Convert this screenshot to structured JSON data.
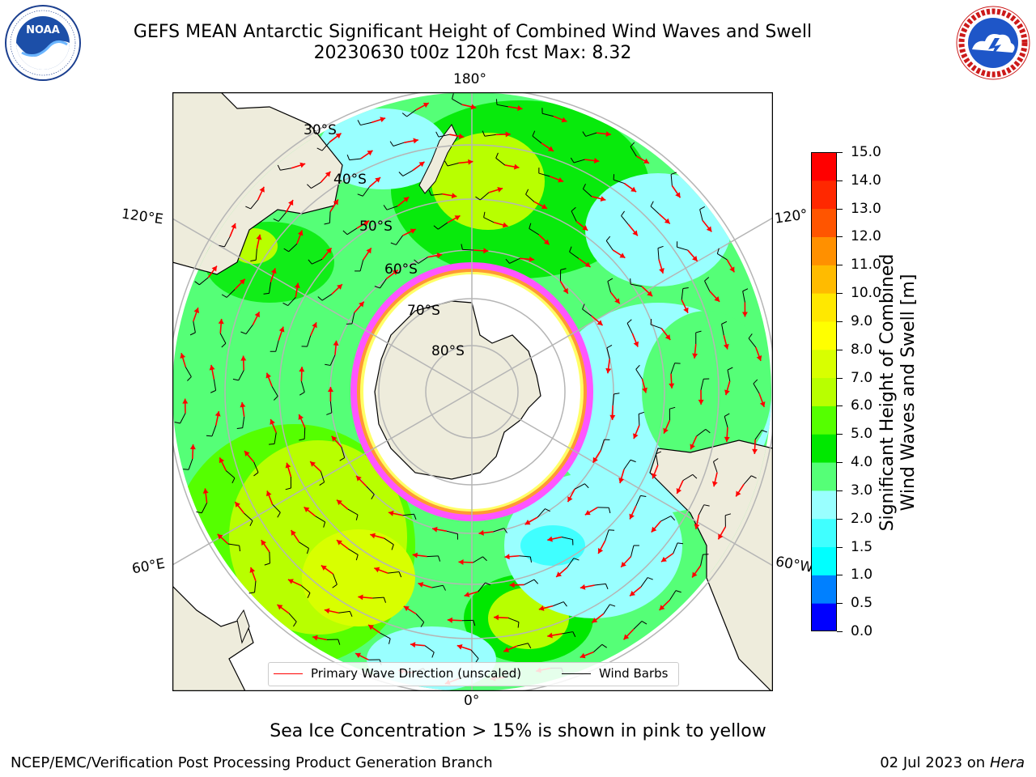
{
  "header": {
    "title_line1": "GEFS MEAN Antarctic Significant Height of Combined Wind Waves and Swell",
    "title_line2": "20230630 t00z 120h fcst   Max: 8.32"
  },
  "logos": {
    "noaa": {
      "text": "NOAA",
      "ring_text": "NATIONAL OCEANIC AND ATMOSPHERIC ADMINISTRATION · U.S. DEPARTMENT OF COMMERCE"
    },
    "nws": {
      "ring_text": "NATIONAL WEATHER SERVICE"
    }
  },
  "map": {
    "projection": "south-polar-stereographic",
    "longitude_labels": {
      "top": "180°",
      "bottom": "0°",
      "upper_left": "120°E",
      "lower_left": "60°E",
      "upper_right": "120°",
      "lower_right": "60°W"
    },
    "latitude_labels": [
      "30°S",
      "40°S",
      "50°S",
      "60°S",
      "70°S",
      "80°S"
    ],
    "colors": {
      "land": "#eeecdc",
      "ice_interior": "#ffffff",
      "sea_ice_edge": [
        "#ff55ff",
        "#ff9933",
        "#ffff66"
      ],
      "wave_arrow": "#ff0000",
      "wind_barb": "#000000",
      "grid": "#b5b5b5"
    }
  },
  "legend": {
    "items": [
      {
        "label": "Primary Wave Direction (unscaled)",
        "color": "#ff0000"
      },
      {
        "label": "Wind Barbs",
        "color": "#000000"
      }
    ]
  },
  "colorbar": {
    "label_line1": "Significant Height of Combined",
    "label_line2": "Wind Waves and Swell [m]",
    "ticks": [
      "0.0",
      "0.5",
      "1.0",
      "1.5",
      "2.0",
      "3.0",
      "4.0",
      "5.0",
      "6.0",
      "7.0",
      "8.0",
      "9.0",
      "10.0",
      "11.0",
      "12.0",
      "13.0",
      "14.0",
      "15.0"
    ],
    "colors": [
      "#0000ff",
      "#0080ff",
      "#00ffff",
      "#40ffff",
      "#99ffff",
      "#55ff77",
      "#00e800",
      "#55ff00",
      "#b8ff00",
      "#d8ff00",
      "#ffff00",
      "#ffe800",
      "#ffbb00",
      "#ff9000",
      "#ff5500",
      "#ff2800",
      "#ff0000"
    ]
  },
  "notes": {
    "sea_ice": "Sea Ice Concentration > 15% is shown in pink to yellow"
  },
  "footer": {
    "left": "NCEP/EMC/Verification Post Processing Product Generation Branch",
    "right_date": "02 Jul 2023 on ",
    "right_machine": "Hera"
  }
}
